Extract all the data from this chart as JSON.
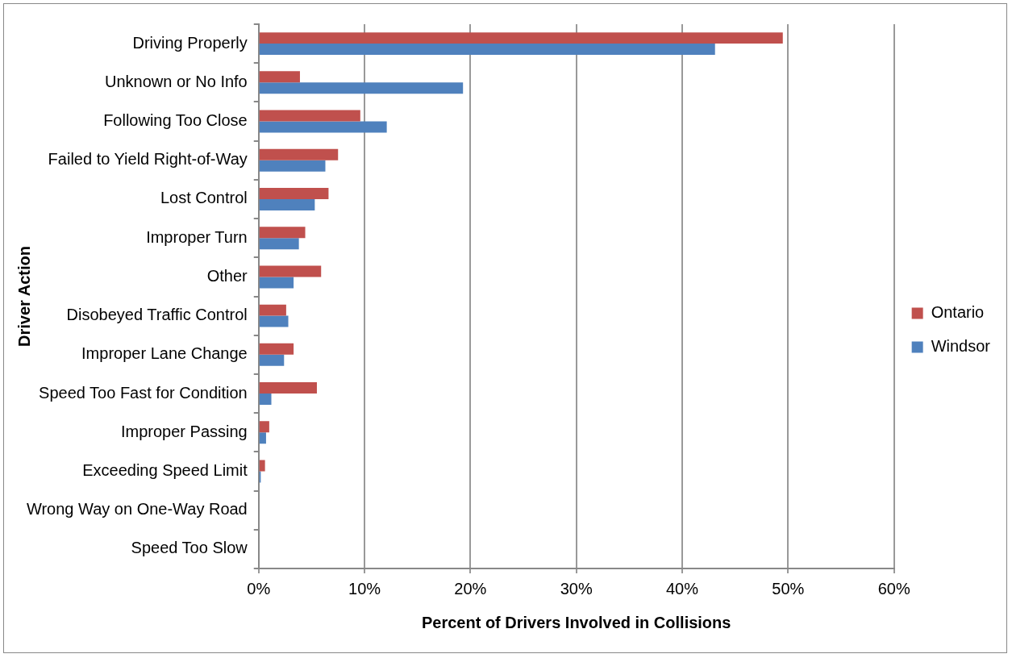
{
  "chart_data": {
    "type": "bar",
    "orientation": "horizontal",
    "xlabel": "Percent of Drivers Involved in Collisions",
    "ylabel": "Driver Action",
    "categories": [
      "Driving Properly",
      "Unknown or No Info",
      "Following Too Close",
      "Failed to Yield Right-of-Way",
      "Lost Control",
      "Improper Turn",
      "Other",
      "Disobeyed Traffic Control",
      "Improper Lane Change",
      "Speed Too Fast for Condition",
      "Improper Passing",
      "Exceeding Speed Limit",
      "Wrong Way on One-Way Road",
      "Speed Too Slow"
    ],
    "series": [
      {
        "name": "Ontario",
        "color": "#c0504d",
        "values": [
          49.5,
          3.9,
          9.6,
          7.5,
          6.6,
          4.4,
          5.9,
          2.6,
          3.3,
          5.5,
          1.0,
          0.6,
          0,
          0
        ]
      },
      {
        "name": "Windsor",
        "color": "#4f81bd",
        "values": [
          43.1,
          19.3,
          12.1,
          6.3,
          5.3,
          3.8,
          3.3,
          2.8,
          2.4,
          1.2,
          0.7,
          0.2,
          0,
          0
        ]
      }
    ],
    "xlim": [
      0,
      60
    ],
    "xticks": [
      {
        "value": 0,
        "label": "0%"
      },
      {
        "value": 10,
        "label": "10%"
      },
      {
        "value": 20,
        "label": "20%"
      },
      {
        "value": 30,
        "label": "30%"
      },
      {
        "value": 40,
        "label": "40%"
      },
      {
        "value": 50,
        "label": "50%"
      },
      {
        "value": 60,
        "label": "60%"
      }
    ],
    "grid": "x",
    "legend": "right"
  }
}
